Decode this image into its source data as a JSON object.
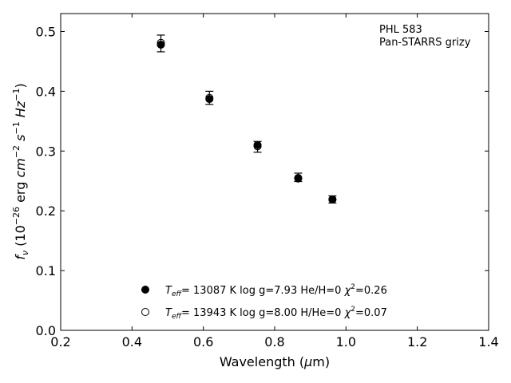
{
  "chart_data": {
    "type": "scatter",
    "xlabel": "Wavelength (μm)",
    "ylabel": "f_ν (10⁻²⁶ erg cm⁻² s⁻¹ Hz⁻¹)",
    "xlim": [
      0.2,
      1.4
    ],
    "ylim": [
      0.0,
      0.53
    ],
    "x_ticks": [
      "0.2",
      "0.4",
      "0.6",
      "0.8",
      "1.0",
      "1.2",
      "1.4"
    ],
    "y_ticks": [
      "0.0",
      "0.1",
      "0.2",
      "0.3",
      "0.4",
      "0.5"
    ],
    "x_tick_values": [
      0.2,
      0.4,
      0.6,
      0.8,
      1.0,
      1.2,
      1.4
    ],
    "y_tick_values": [
      0.0,
      0.1,
      0.2,
      0.3,
      0.4,
      0.5
    ],
    "grid": false,
    "legend_position": "bottom-center",
    "annotation": [
      "PHL 583",
      "Pan-STARRS grizy"
    ],
    "observed": {
      "x": [
        0.481,
        0.617,
        0.752,
        0.866,
        0.962
      ],
      "y": [
        0.48,
        0.389,
        0.307,
        0.256,
        0.219
      ],
      "yerr": [
        0.014,
        0.011,
        0.009,
        0.007,
        0.006
      ]
    },
    "series": [
      {
        "name": "T_eff= 13087 K  log g=7.93  He/H=0  χ²=0.26",
        "marker": "filled-circle",
        "x": [
          0.481,
          0.617,
          0.752,
          0.866,
          0.962
        ],
        "y": [
          0.478,
          0.387,
          0.31,
          0.254,
          0.219
        ]
      },
      {
        "name": "T_eff= 13943 K  log g=8.00  H/He=0  χ²=0.07",
        "marker": "open-circle",
        "x": [
          0.481,
          0.617,
          0.752,
          0.866,
          0.962
        ],
        "y": [
          0.481,
          0.389,
          0.308,
          0.255,
          0.219
        ]
      }
    ]
  }
}
